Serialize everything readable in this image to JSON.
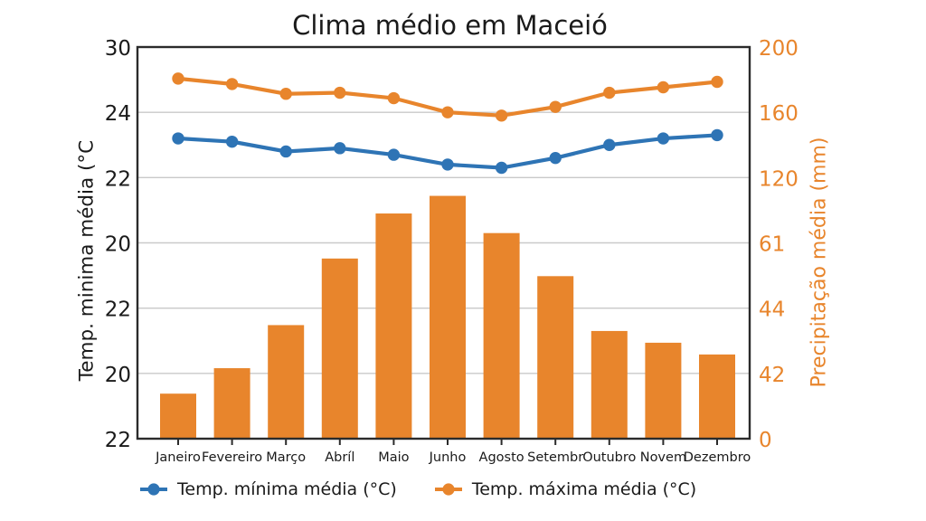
{
  "chart_data": {
    "type": "combo",
    "title": "Clima médio em Maceió",
    "categories": [
      "Janeiro",
      "Fevereiro",
      "Março",
      "Abríl",
      "Maio",
      "Junho",
      "Agosto",
      "Setembr",
      "Outubro",
      "Novem",
      "Dezembro"
    ],
    "bar_series": {
      "name": "Precipitação média (mm)",
      "values": [
        23,
        36,
        58,
        92,
        115,
        124,
        105,
        83,
        55,
        49,
        43
      ],
      "color": "#e8852c"
    },
    "line_series": [
      {
        "name": "Temp. mínima média (°C)",
        "values": [
          23.2,
          23.1,
          22.8,
          22.9,
          22.7,
          22.4,
          22.3,
          22.6,
          23.0,
          23.2,
          23.3
        ],
        "color": "#2e74b5"
      },
      {
        "name": "Temp. máxima média (°C)",
        "values": [
          27.1,
          26.6,
          25.7,
          25.8,
          25.3,
          24.0,
          23.9,
          24.5,
          25.8,
          26.3,
          26.8
        ],
        "color": "#e8852c"
      }
    ],
    "left_axis": {
      "label": "Temp. minima média (°C",
      "ticks": [
        "30",
        "24",
        "22",
        "20",
        "22",
        "20",
        "22"
      ]
    },
    "right_axis": {
      "label": "Precipitação média (mm)",
      "ticks": [
        "200",
        "160",
        "120",
        "61",
        "44",
        "42",
        "0"
      ]
    },
    "legend_position": "bottom",
    "grid": true
  },
  "style": {
    "grid_color": "#c9c9c9",
    "spine_color": "#2b2b2b",
    "text_color": "#1a1a1a",
    "accent_orange": "#e8852c",
    "accent_blue": "#2e74b5"
  }
}
